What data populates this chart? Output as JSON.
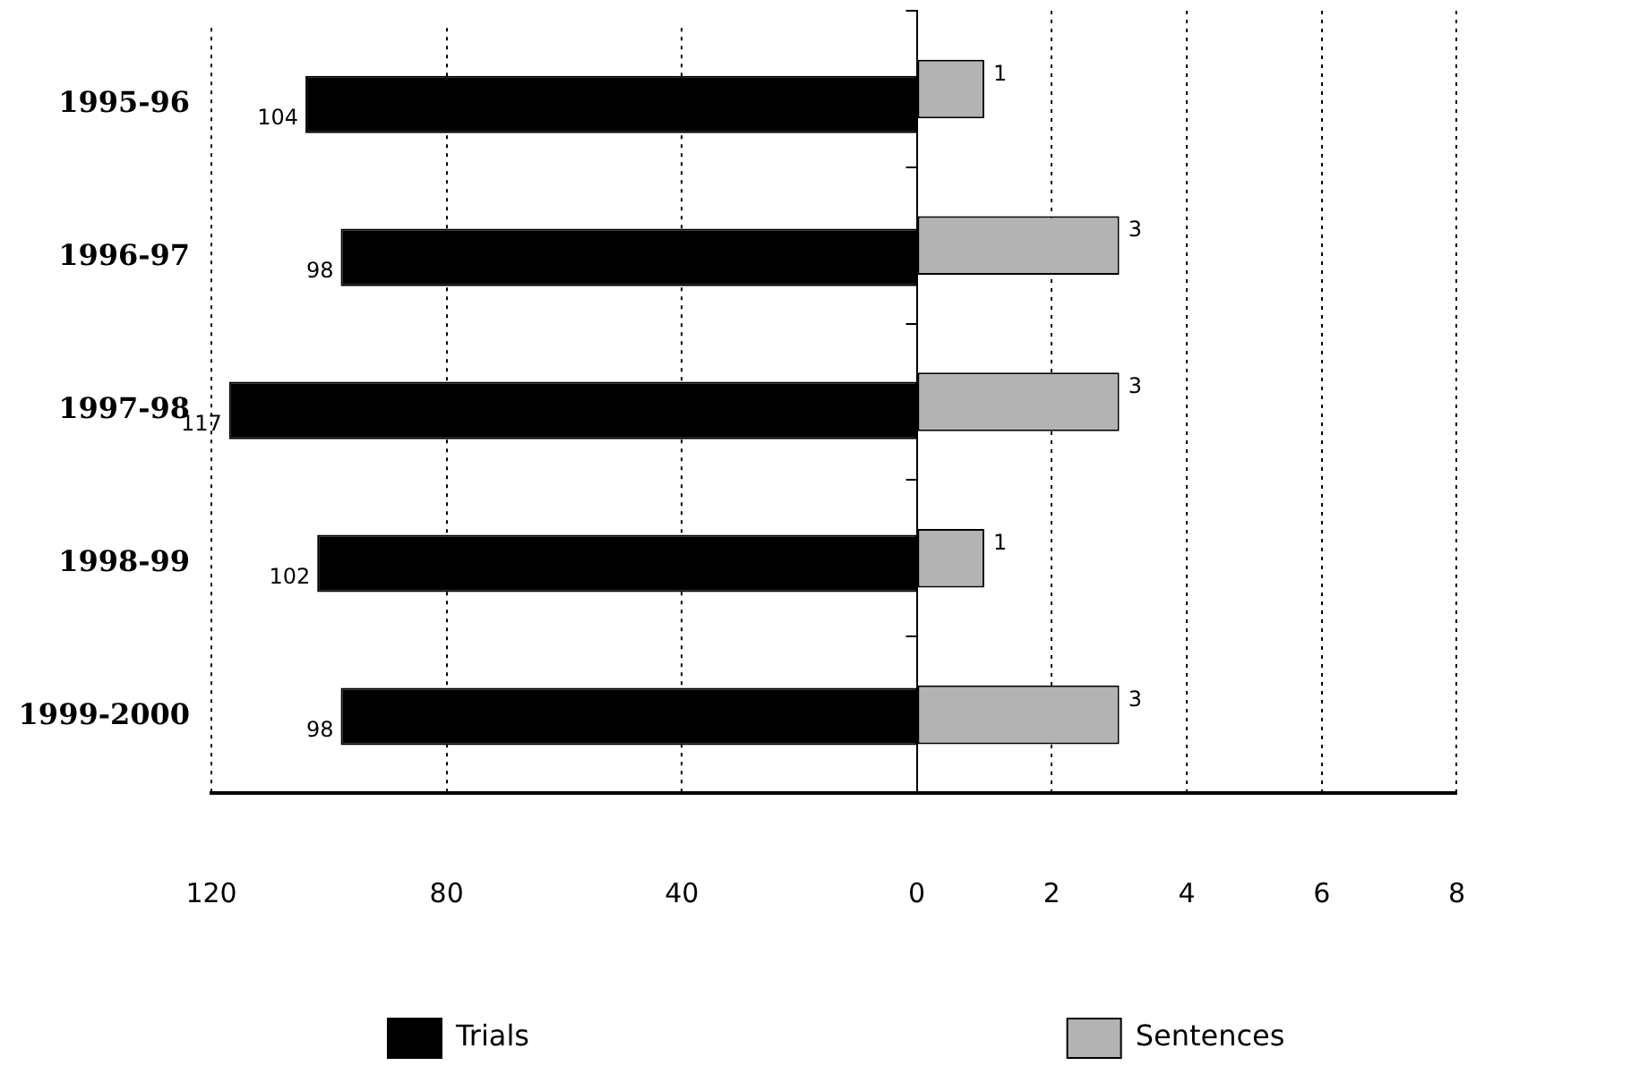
{
  "chart_data": [
    {
      "type": "bar",
      "orientation": "horizontal",
      "categories": [
        "1995-96",
        "1996-97",
        "1997-98",
        "1998-99",
        "1999-2000"
      ],
      "series": [
        {
          "name": "Trials",
          "color": "#000000",
          "values": [
            104,
            98,
            117,
            102,
            98
          ]
        }
      ],
      "xlim": [
        120,
        0
      ],
      "xticks": [
        120,
        80,
        40
      ],
      "grid": "x",
      "legend": "bottom",
      "data_labels": true
    },
    {
      "type": "bar",
      "orientation": "horizontal",
      "categories": [
        null,
        null,
        null,
        null,
        null
      ],
      "series": [
        {
          "name": "Sentences",
          "color": "#b3b3b3",
          "values": [
            1,
            3,
            3,
            1,
            3
          ]
        }
      ],
      "xlim": [
        0,
        8
      ],
      "xticks": [
        0,
        2,
        4,
        6,
        8
      ],
      "grid": "x",
      "legend": "bottom",
      "data_labels": true,
      "tick_labels": "x"
    }
  ]
}
